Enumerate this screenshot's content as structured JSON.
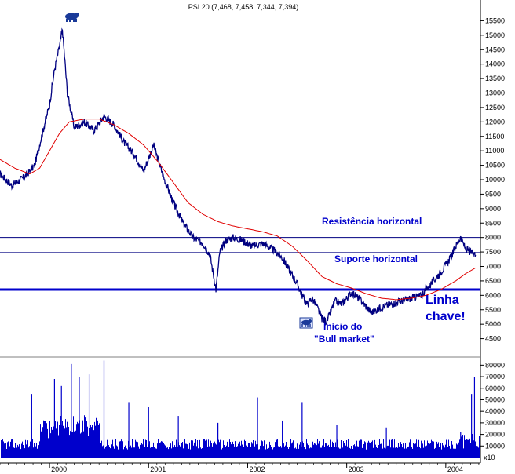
{
  "chart_data": {
    "type": "line",
    "title": "PSI 20 (7,468, 7,458, 7,344, 7,394)",
    "price_panel": {
      "ylim": [
        4000,
        16000
      ],
      "y_ticks": [
        4500,
        5000,
        5500,
        6000,
        6500,
        7000,
        7500,
        8000,
        8500,
        9000,
        9500,
        10000,
        10500,
        11000,
        11500,
        12000,
        12500,
        13000,
        13500,
        14000,
        14500,
        15000,
        15500
      ],
      "series": [
        {
          "kind": "price",
          "color": "#000080",
          "x": [
            1999.5,
            1999.62,
            1999.75,
            1999.85,
            1999.92,
            2000.0,
            2000.05,
            2000.1,
            2000.13,
            2000.18,
            2000.25,
            2000.35,
            2000.45,
            2000.55,
            2000.65,
            2000.75,
            2000.85,
            2000.95,
            2001.05,
            2001.15,
            2001.25,
            2001.35,
            2001.45,
            2001.55,
            2001.62,
            2001.68,
            2001.72,
            2001.78,
            2001.85,
            2001.95,
            2002.05,
            2002.15,
            2002.25,
            2002.35,
            2002.45,
            2002.5,
            2002.55,
            2002.6,
            2002.65,
            2002.7,
            2002.75,
            2002.8,
            2002.88,
            2002.95,
            2003.05,
            2003.15,
            2003.25,
            2003.35,
            2003.45,
            2003.55,
            2003.65,
            2003.75,
            2003.85,
            2003.95,
            2004.05,
            2004.1,
            2004.15,
            2004.2,
            2004.25,
            2004.3
          ],
          "y": [
            10200,
            9800,
            10100,
            10500,
            11500,
            12600,
            13800,
            14600,
            15200,
            13000,
            11800,
            12000,
            11700,
            12200,
            11900,
            11300,
            10900,
            10300,
            11200,
            10100,
            9200,
            8500,
            8000,
            7800,
            7400,
            6200,
            7500,
            7900,
            8000,
            7900,
            7700,
            7800,
            7600,
            7300,
            6700,
            6400,
            6000,
            5700,
            5900,
            5600,
            5200,
            5100,
            5800,
            5700,
            6100,
            5800,
            5400,
            5600,
            5700,
            5800,
            5900,
            6000,
            6400,
            6800,
            7300,
            7700,
            8000,
            7600,
            7500,
            7394
          ]
        },
        {
          "kind": "moving-average",
          "color": "#e00000",
          "x": [
            1999.5,
            1999.65,
            1999.8,
            1999.9,
            2000.0,
            2000.1,
            2000.2,
            2000.35,
            2000.5,
            2000.65,
            2000.8,
            2000.95,
            2001.1,
            2001.25,
            2001.4,
            2001.55,
            2001.7,
            2001.85,
            2002.0,
            2002.15,
            2002.3,
            2002.45,
            2002.6,
            2002.75,
            2002.9,
            2003.05,
            2003.2,
            2003.35,
            2003.5,
            2003.65,
            2003.8,
            2003.95,
            2004.1,
            2004.2,
            2004.3
          ],
          "y": [
            10700,
            10400,
            10200,
            10400,
            11000,
            11600,
            12000,
            12100,
            12100,
            11900,
            11600,
            11200,
            10600,
            9900,
            9200,
            8800,
            8550,
            8400,
            8300,
            8200,
            8050,
            7700,
            7200,
            6650,
            6400,
            6250,
            6050,
            5900,
            5850,
            5900,
            6000,
            6200,
            6500,
            6750,
            6950
          ]
        }
      ],
      "horizontal_lines": [
        {
          "value": 8000,
          "color": "#000080",
          "weight": "thin"
        },
        {
          "value": 7480,
          "color": "#000080",
          "weight": "thin"
        },
        {
          "value": 6200,
          "color": "#0000cc",
          "weight": "thick"
        }
      ],
      "annotations": [
        {
          "text": "Resistência horizontal",
          "size": "small"
        },
        {
          "text": "Suporte horizontal",
          "size": "small"
        },
        {
          "text": "Linha",
          "size": "big"
        },
        {
          "text": "chave!",
          "size": "big"
        },
        {
          "text": "Início do",
          "size": "small"
        },
        {
          "text": "\"Bull market\"",
          "size": "small"
        }
      ],
      "icons": [
        "bear-icon",
        "bull-icon"
      ]
    },
    "volume_panel": {
      "ylim": [
        0,
        85000
      ],
      "y_ticks": [
        10000,
        20000,
        30000,
        40000,
        50000,
        60000,
        70000,
        80000
      ],
      "multiplier_label": "x10",
      "spikes": [
        {
          "x": 1999.82,
          "value": 55000
        },
        {
          "x": 2000.05,
          "value": 68000
        },
        {
          "x": 2000.12,
          "value": 62000
        },
        {
          "x": 2000.22,
          "value": 81000
        },
        {
          "x": 2000.3,
          "value": 70000
        },
        {
          "x": 2000.4,
          "value": 72000
        },
        {
          "x": 2000.55,
          "value": 84000
        },
        {
          "x": 2000.8,
          "value": 48000
        },
        {
          "x": 2001.0,
          "value": 44000
        },
        {
          "x": 2001.3,
          "value": 36000
        },
        {
          "x": 2001.7,
          "value": 30000
        },
        {
          "x": 2002.1,
          "value": 52000
        },
        {
          "x": 2002.35,
          "value": 32000
        },
        {
          "x": 2002.55,
          "value": 48000
        },
        {
          "x": 2002.9,
          "value": 28000
        },
        {
          "x": 2003.4,
          "value": 26000
        },
        {
          "x": 2004.15,
          "value": 22000
        },
        {
          "x": 2004.26,
          "value": 55000
        },
        {
          "x": 2004.29,
          "value": 70000
        }
      ]
    },
    "x_axis": {
      "range": [
        1999.5,
        2004.35
      ],
      "ticks": [
        {
          "value": 2000.0,
          "label": "2000"
        },
        {
          "value": 2001.0,
          "label": "2001"
        },
        {
          "value": 2002.0,
          "label": "2002"
        },
        {
          "value": 2003.0,
          "label": "2003"
        },
        {
          "value": 2004.0,
          "label": "2004"
        }
      ]
    }
  }
}
